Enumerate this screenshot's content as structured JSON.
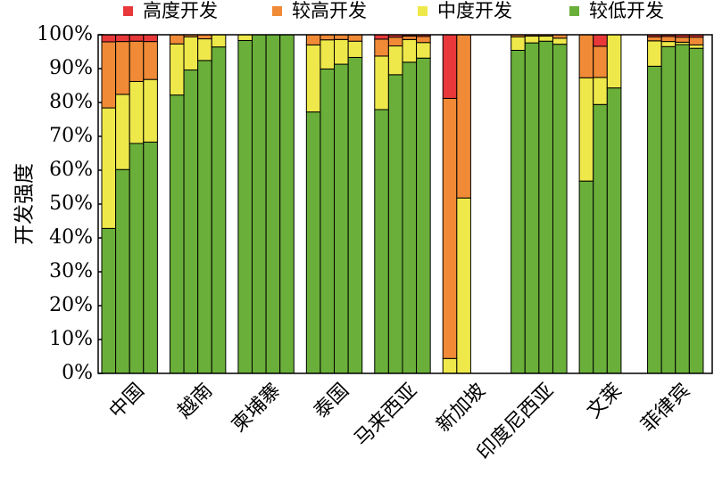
{
  "chart_data": {
    "type": "bar",
    "stacked": true,
    "ylabel": "开发强度",
    "ylim": [
      0,
      100
    ],
    "yticks": [
      "0%",
      "10%",
      "20%",
      "30%",
      "40%",
      "50%",
      "60%",
      "70%",
      "80%",
      "90%",
      "100%"
    ],
    "legend": {
      "placement": "top"
    },
    "colors": {
      "高度开发": "#e8383a",
      "较高开发": "#f08a36",
      "中度开发": "#eee84a",
      "较低开发": "#6aaf3a"
    },
    "series_order": [
      "较低开发",
      "中度开发",
      "较高开发",
      "高度开发"
    ],
    "legend_order": [
      "高度开发",
      "较高开发",
      "中度开发",
      "较低开发"
    ],
    "groups": [
      {
        "country": "中国",
        "bars": [
          {
            "较低开发": 42.8,
            "中度开发": 35.6,
            "较高开发": 19.5,
            "高度开发": 2.1
          },
          {
            "较低开发": 60.2,
            "中度开发": 22.2,
            "较高开发": 15.6,
            "高度开发": 2.0
          },
          {
            "较低开发": 67.9,
            "中度开发": 18.3,
            "较高开发": 11.9,
            "高度开发": 1.9
          },
          {
            "较低开发": 68.3,
            "中度开发": 18.5,
            "较高开发": 11.2,
            "高度开发": 2.0
          }
        ]
      },
      {
        "country": "越南",
        "bars": [
          {
            "较低开发": 82.2,
            "中度开发": 15.1,
            "较高开发": 2.7,
            "高度开发": 0
          },
          {
            "较低开发": 89.6,
            "中度开发": 9.8,
            "较高开发": 0.6,
            "高度开发": 0
          },
          {
            "较低开发": 92.4,
            "中度开发": 6.4,
            "较高开发": 1.2,
            "高度开发": 0
          },
          {
            "较低开发": 96.4,
            "中度开发": 3.6,
            "较高开发": 0,
            "高度开发": 0
          }
        ]
      },
      {
        "country": "柬埔寨",
        "bars": [
          {
            "较低开发": 98.3,
            "中度开发": 1.7,
            "较高开发": 0,
            "高度开发": 0
          },
          {
            "较低开发": 100,
            "中度开发": 0,
            "较高开发": 0,
            "高度开发": 0
          },
          {
            "较低开发": 100,
            "中度开发": 0,
            "较高开发": 0,
            "高度开发": 0
          },
          {
            "较低开发": 100,
            "中度开发": 0,
            "较高开发": 0,
            "高度开发": 0
          }
        ]
      },
      {
        "country": "泰国",
        "bars": [
          {
            "较低开发": 77.2,
            "中度开发": 19.8,
            "较高开发": 3.0,
            "高度开发": 0
          },
          {
            "较低开发": 89.9,
            "中度开发": 8.6,
            "较高开发": 1.5,
            "高度开发": 0
          },
          {
            "较低开发": 91.3,
            "中度开发": 7.3,
            "较高开发": 1.4,
            "高度开发": 0
          },
          {
            "较低开发": 93.3,
            "中度开发": 4.8,
            "较高开发": 1.9,
            "高度开发": 0
          }
        ]
      },
      {
        "country": "马来西亚",
        "bars": [
          {
            "较低开发": 77.9,
            "中度开发": 15.8,
            "较高开发": 5.0,
            "高度开发": 1.3
          },
          {
            "较低开发": 88.2,
            "中度开发": 8.5,
            "较高开发": 2.6,
            "高度开发": 0.7
          },
          {
            "较低开发": 91.9,
            "中度开发": 6.7,
            "较高开发": 1.0,
            "高度开发": 0.4
          },
          {
            "较低开发": 93.1,
            "中度开发": 4.6,
            "较高开发": 1.8,
            "高度开发": 0.5
          }
        ]
      },
      {
        "country": "新加坡",
        "bars": [
          {
            "较低开发": 0,
            "中度开发": 4.4,
            "较高开发": 76.8,
            "高度开发": 18.8
          },
          {
            "较低开发": 0,
            "中度开发": 51.8,
            "较高开发": 48.2,
            "高度开发": 0
          }
        ]
      },
      {
        "country": "印度尼西亚",
        "bars": [
          {
            "较低开发": 95.4,
            "中度开发": 4.0,
            "较高开发": 0.6,
            "高度开发": 0
          },
          {
            "较低开发": 97.6,
            "中度开发": 2.0,
            "较高开发": 0.4,
            "高度开发": 0
          },
          {
            "较低开发": 98.1,
            "中度开发": 1.5,
            "较高开发": 0.4,
            "高度开发": 0
          },
          {
            "较低开发": 97.2,
            "中度开发": 1.8,
            "较高开发": 1.0,
            "高度开发": 0
          }
        ]
      },
      {
        "country": "文莱",
        "bars": [
          {
            "较低开发": 56.8,
            "中度开发": 30.5,
            "较高开发": 12.7,
            "高度开发": 0
          },
          {
            "较低开发": 79.4,
            "中度开发": 8.0,
            "较高开发": 9.2,
            "高度开发": 3.4
          },
          {
            "较低开发": 84.3,
            "中度开发": 15.7,
            "较高开发": 0,
            "高度开发": 0
          }
        ]
      },
      {
        "country": "菲律宾",
        "bars": [
          {
            "较低开发": 90.7,
            "中度开发": 7.5,
            "较高开发": 1.2,
            "高度开发": 0.6
          },
          {
            "较低开发": 96.5,
            "中度开发": 1.5,
            "较高开发": 1.5,
            "高度开发": 0.5
          },
          {
            "较低开发": 97.1,
            "中度开发": 0.7,
            "较高开发": 1.5,
            "高度开发": 0.7
          },
          {
            "较低开发": 96.0,
            "中度开发": 1.0,
            "较高开发": 2.3,
            "高度开发": 0.7
          }
        ]
      }
    ]
  }
}
